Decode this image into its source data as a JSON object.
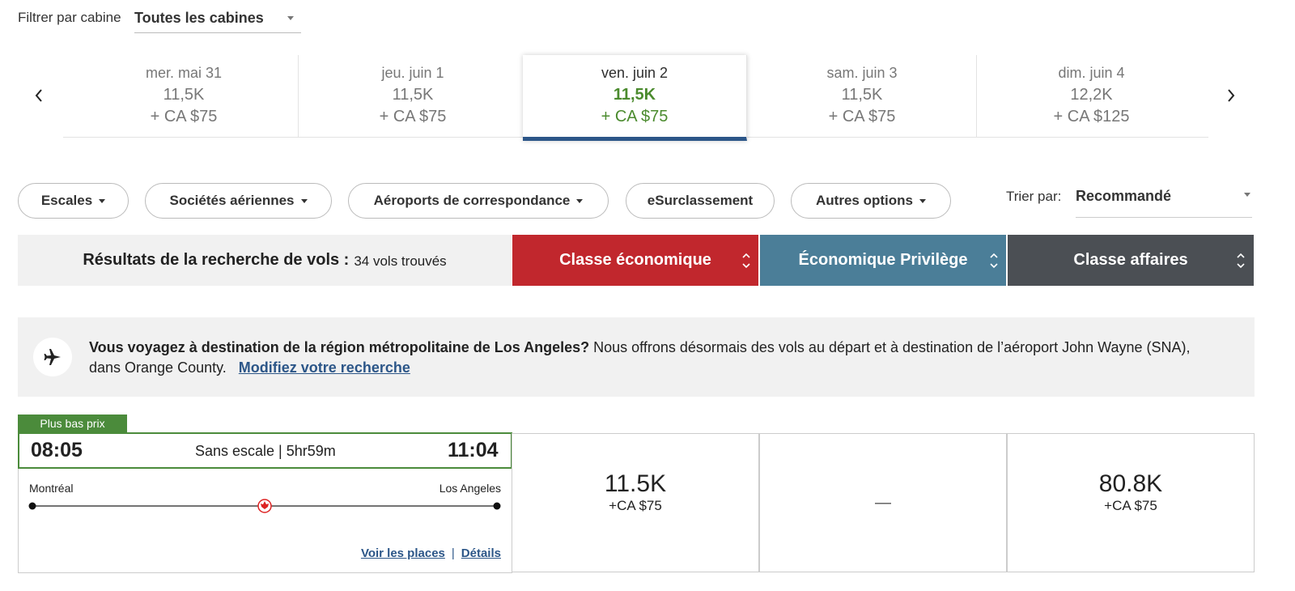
{
  "filter": {
    "label": "Filtrer par cabine",
    "value": "Toutes les cabines"
  },
  "dates": [
    {
      "day": "mer. mai 31",
      "points": "11,5K",
      "fee": "+ CA $75"
    },
    {
      "day": "jeu. juin 1",
      "points": "11,5K",
      "fee": "+ CA $75"
    },
    {
      "day": "ven. juin 2",
      "points": "11,5K",
      "fee": "+ CA $75"
    },
    {
      "day": "sam. juin 3",
      "points": "11,5K",
      "fee": "+ CA $75"
    },
    {
      "day": "dim. juin 4",
      "points": "12,2K",
      "fee": "+ CA $125"
    }
  ],
  "filters": [
    "Escales",
    "Sociétés aériennes",
    "Aéroports de correspondance",
    "eSurclassement",
    "Autres options"
  ],
  "sort": {
    "label": "Trier par:",
    "value": "Recommandé"
  },
  "results": {
    "title": "Résultats de la recherche de vols :",
    "count": "34 vols trouvés"
  },
  "cabins": [
    "Classe économique",
    "Économique Privilège",
    "Classe affaires"
  ],
  "notice": {
    "bold": "Vous voyagez à destination de la région métropolitaine de Los Angeles?",
    "text": "Nous offrons désormais des vols au départ et à destination de l’aéroport John Wayne (SNA), dans Orange County.",
    "link": "Modifiez votre recherche"
  },
  "flight": {
    "badge": "Plus bas prix",
    "depart": "08:05",
    "stops": "Sans escale | 5hr59m",
    "arrive": "11:04",
    "origin": "Montréal",
    "destination": "Los Angeles",
    "links": [
      "Voir les places",
      "Détails"
    ],
    "separator": "|",
    "fares": [
      {
        "points": "11.5K",
        "fee": "+CA $75"
      },
      {
        "points": "—"
      },
      {
        "points": "80.8K",
        "fee": "+CA $75"
      }
    ]
  }
}
